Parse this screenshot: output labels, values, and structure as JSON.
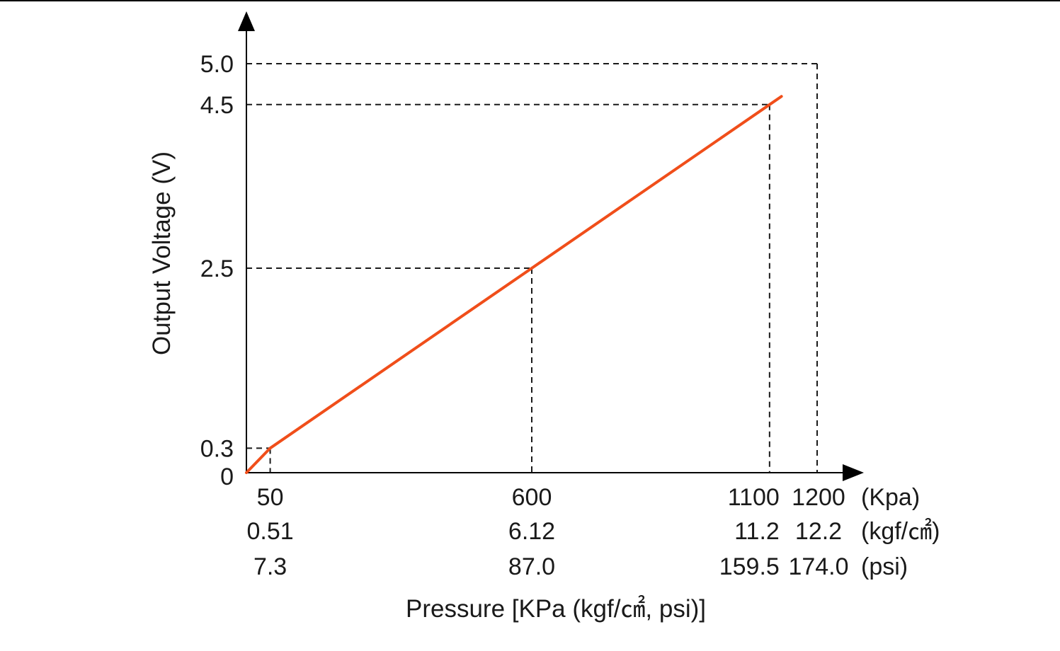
{
  "chart_data": {
    "type": "line",
    "title": "",
    "xlabel": "Pressure [KPa (kgf/㎠, psi)]",
    "ylabel": "Output Voltage (V)",
    "xlim": [
      0,
      1200
    ],
    "ylim": [
      0,
      5.0
    ],
    "grid": false,
    "series": [
      {
        "x": [
          0,
          50,
          600,
          1100,
          1125
        ],
        "y": [
          0,
          0.3,
          2.5,
          4.5,
          4.6
        ],
        "color": "#f04e1a"
      }
    ],
    "y_ticks": [
      {
        "value": 0,
        "label": "0"
      },
      {
        "value": 0.3,
        "label": "0.3"
      },
      {
        "value": 2.5,
        "label": "2.5"
      },
      {
        "value": 4.5,
        "label": "4.5"
      },
      {
        "value": 5.0,
        "label": "5.0"
      }
    ],
    "x_ticks": [
      {
        "value": 50,
        "kpa": "50",
        "kgf": "0.51",
        "psi": "7.3"
      },
      {
        "value": 600,
        "kpa": "600",
        "kgf": "6.12",
        "psi": "87.0"
      },
      {
        "value": 1100,
        "kpa": "1100",
        "kgf": "11.2",
        "psi": "159.5"
      },
      {
        "value": 1200,
        "kpa": "1200",
        "kgf": "12.2",
        "psi": "174.0"
      }
    ],
    "unit_labels": [
      "(Kpa)",
      "(kgf/㎠)",
      "(psi)"
    ],
    "reference_points": [
      {
        "x": 50,
        "y": 0.3
      },
      {
        "x": 600,
        "y": 2.5
      },
      {
        "x": 1100,
        "y": 4.5
      },
      {
        "x": 1200,
        "y": 5.0
      }
    ]
  }
}
